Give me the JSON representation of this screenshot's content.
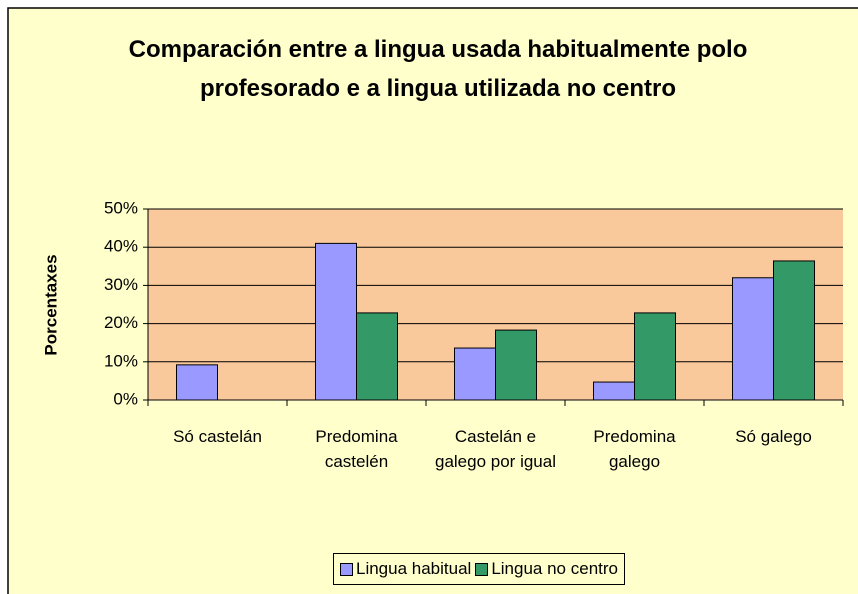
{
  "chart_data": {
    "type": "bar",
    "title": "Comparación entre a lingua usada habitualmente polo profesorado e a lingua utilizada no centro",
    "ylabel": "Porcentaxes",
    "categories": [
      "Só castelán",
      "Predomina castelén",
      "Castelán e galego por igual",
      "Predomina galego",
      "Só galego"
    ],
    "series": [
      {
        "name": "Lingua habitual",
        "color": "#9999ff",
        "values": [
          9.2,
          41,
          13.6,
          4.7,
          32
        ]
      },
      {
        "name": "Lingua no centro",
        "color": "#339966",
        "values": [
          0,
          22.8,
          18.3,
          22.8,
          36.4
        ]
      }
    ],
    "ylim": [
      0,
      50
    ],
    "yticks": [
      {
        "value": 0,
        "label": "0%"
      },
      {
        "value": 10,
        "label": "10%"
      },
      {
        "value": 20,
        "label": "20%"
      },
      {
        "value": 30,
        "label": "30%"
      },
      {
        "value": 40,
        "label": "40%"
      },
      {
        "value": 50,
        "label": "50%"
      }
    ],
    "grid": true,
    "legend": "bottom"
  }
}
